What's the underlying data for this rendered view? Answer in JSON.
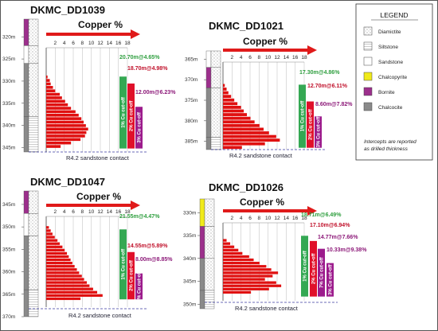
{
  "legend": {
    "title": "LEGEND",
    "items": [
      {
        "label": "Diamictite",
        "pattern": "dots"
      },
      {
        "label": "Siltstone",
        "pattern": "fine"
      },
      {
        "label": "Sandstone",
        "pattern": "plain"
      },
      {
        "label": "Chalcopyrite",
        "color": "#f0ea1a"
      },
      {
        "label": "Bornite",
        "color": "#9c2f8c"
      },
      {
        "label": "Chalcocite",
        "color": "#8a8a8a"
      }
    ],
    "note_line1": "Intercepts are reported",
    "note_line2": "as drilled thickness"
  },
  "colors": {
    "bars": "#e01010",
    "cutoff_1pct": "#34a853",
    "cutoff_2pct": "#e0102a",
    "cutoff_3pct": "#9c1b8c",
    "arrow": "#e01a1a",
    "contact": "#3a3aa0",
    "green_text": "#2e9e3e",
    "red_text": "#c0102a",
    "purple_text": "#8c1878"
  },
  "chart_data": [
    {
      "type": "bar",
      "orientation": "horizontal",
      "title": "DKMC_DD1039",
      "xlabel": "Copper %",
      "x_ticks": [
        "2",
        "4",
        "6",
        "8",
        "10",
        "12",
        "14",
        "16",
        "18"
      ],
      "xlim": [
        0,
        18
      ],
      "depth_labels": [
        "320m",
        "325m",
        "330m",
        "335m",
        "340m",
        "345m"
      ],
      "depth_range": [
        316,
        346
      ],
      "depths": [
        324,
        325,
        326,
        327,
        328,
        329,
        330,
        331,
        332,
        333,
        334,
        335,
        336,
        337,
        338,
        339,
        340,
        341,
        342,
        343,
        344
      ],
      "values": [
        0.3,
        0.8,
        1.0,
        1.5,
        2.0,
        3.0,
        3.5,
        4.2,
        4.8,
        5.5,
        6.5,
        7.2,
        7.8,
        8.3,
        8.8,
        9.3,
        8.9,
        8.6,
        7.6,
        5.5,
        3.2
      ],
      "cutoffs": [
        {
          "label": "1% Cu cut-off",
          "intercept": "20.70m@4.65%",
          "top": 324.3,
          "bottom": 345.0
        },
        {
          "label": "2% Cu cut-off",
          "intercept": "18.70m@4.98%",
          "top": 326.3,
          "bottom": 345.0
        },
        {
          "label": "3% Cu cut-off",
          "intercept": "12.00m@6.23%",
          "top": 333.0,
          "bottom": 345.0
        }
      ],
      "contact_label": "R4.2 sandstone contact",
      "contact_depth": 345.5,
      "lithology": [
        {
          "from": 316,
          "to": 322,
          "mineral": "#9c2f8c",
          "pattern": "dots"
        },
        {
          "from": 322,
          "to": 326,
          "mineral": "#ffffff",
          "pattern": "dots"
        },
        {
          "from": 326,
          "to": 338,
          "mineral": "#8a8a8a",
          "pattern": "dots"
        },
        {
          "from": 338,
          "to": 346,
          "mineral": "#8a8a8a",
          "pattern": "fine"
        }
      ]
    },
    {
      "type": "bar",
      "orientation": "horizontal",
      "title": "DKMC_DD1021",
      "xlabel": "Copper %",
      "x_ticks": [
        "2",
        "4",
        "6",
        "8",
        "10",
        "12",
        "14",
        "16",
        "18"
      ],
      "xlim": [
        0,
        18
      ],
      "depth_labels": [
        "365m",
        "370m",
        "375m",
        "380m",
        "385m"
      ],
      "depth_range": [
        363,
        387
      ],
      "depths": [
        369,
        370,
        371,
        372,
        373,
        374,
        375,
        376,
        377,
        378,
        379,
        380,
        381,
        382,
        383,
        384,
        385,
        386
      ],
      "values": [
        0.4,
        0.8,
        1.2,
        1.8,
        2.5,
        3.2,
        4.0,
        4.6,
        5.3,
        6.1,
        7.0,
        8.1,
        9.0,
        10.2,
        11.8,
        12.6,
        9.3,
        4.2
      ],
      "cutoffs": [
        {
          "label": "1% Cu cut-off",
          "intercept": "17.30m@4.86%",
          "top": 369.2,
          "bottom": 386.5
        },
        {
          "label": "2% Cu cut-off",
          "intercept": "12.70m@6.11%",
          "top": 373.8,
          "bottom": 386.5
        },
        {
          "label": "3% Cu cut-off",
          "intercept": "8.60m@7.82%",
          "top": 377.9,
          "bottom": 386.5
        }
      ],
      "contact_label": "R4.2 sandstone contact",
      "contact_depth": 387.0,
      "lithology": [
        {
          "from": 363,
          "to": 367,
          "mineral": "#ffffff",
          "pattern": "dots"
        },
        {
          "from": 367,
          "to": 372,
          "mineral": "#9c2f8c",
          "pattern": "dots"
        },
        {
          "from": 372,
          "to": 384,
          "mineral": "#8a8a8a",
          "pattern": "dots"
        },
        {
          "from": 384,
          "to": 387,
          "mineral": "#8a8a8a",
          "pattern": "fine"
        }
      ]
    },
    {
      "type": "bar",
      "orientation": "horizontal",
      "title": "DKMC_DD1047",
      "xlabel": "Copper %",
      "x_ticks": [
        "2",
        "4",
        "6",
        "8",
        "10",
        "12",
        "14",
        "16",
        "18"
      ],
      "xlim": [
        0,
        18
      ],
      "depth_labels": [
        "345m",
        "350m",
        "355m",
        "360m",
        "365m",
        "370m"
      ],
      "depth_range": [
        342,
        370
      ],
      "depths": [
        345,
        346,
        347,
        348,
        349,
        350,
        351,
        352,
        353,
        354,
        355,
        356,
        357,
        358,
        359,
        360,
        361,
        362,
        363,
        364,
        365,
        366,
        367
      ],
      "values": [
        0.6,
        1.0,
        1.4,
        1.9,
        2.5,
        3.0,
        3.6,
        4.1,
        4.6,
        5.0,
        5.4,
        5.8,
        6.3,
        6.8,
        7.3,
        7.9,
        8.4,
        9.0,
        9.6,
        10.4,
        11.3,
        12.5,
        7.6
      ],
      "cutoffs": [
        {
          "label": "1% Cu cut-off",
          "intercept": "21.55m@4.47%",
          "top": 346.0,
          "bottom": 367.6
        },
        {
          "label": "2% Cu cut-off",
          "intercept": "14.55m@5.89%",
          "top": 353.0,
          "bottom": 367.6
        },
        {
          "label": "3% Cu cut-off",
          "intercept": "8.00m@8.85%",
          "top": 359.6,
          "bottom": 367.6
        }
      ],
      "contact_label": "R4.2 sandstone contact",
      "contact_depth": 368.0,
      "lithology": [
        {
          "from": 342,
          "to": 347,
          "mineral": "#9c2f8c",
          "pattern": "dots"
        },
        {
          "from": 347,
          "to": 352,
          "mineral": "#ffffff",
          "pattern": "dots"
        },
        {
          "from": 352,
          "to": 364,
          "mineral": "#8a8a8a",
          "pattern": "dots"
        },
        {
          "from": 364,
          "to": 370,
          "mineral": "#8a8a8a",
          "pattern": "fine"
        }
      ]
    },
    {
      "type": "bar",
      "orientation": "horizontal",
      "title": "DKMC_DD1026",
      "xlabel": "Copper %",
      "x_ticks": [
        "2",
        "4",
        "6",
        "8",
        "10",
        "12",
        "14",
        "16",
        "18"
      ],
      "xlim": [
        0,
        18
      ],
      "depth_labels": [
        "330m",
        "335m",
        "340m",
        "345m",
        "350m"
      ],
      "depth_range": [
        327,
        351
      ],
      "depths": [
        332,
        333,
        334,
        335,
        336,
        337,
        338,
        339,
        340,
        341,
        342,
        343,
        344,
        345,
        346,
        347,
        348
      ],
      "values": [
        0.8,
        1.6,
        2.5,
        3.4,
        4.3,
        5.8,
        6.8,
        8.1,
        9.6,
        10.7,
        12.2,
        11.0,
        9.3,
        11.8,
        12.9,
        10.2,
        6.2
      ],
      "cutoffs": [
        {
          "label": "1% Cu cut-off",
          "intercept": "18.71m@6.49%",
          "top": 331.0,
          "bottom": 349.7
        },
        {
          "label": "2% Cu cut-off",
          "intercept": "17.10m@6.94%",
          "top": 332.6,
          "bottom": 349.7
        },
        {
          "label": "7% Cu cut-off",
          "intercept": "14.77m@7.66%",
          "top": 335.0,
          "bottom": 349.7
        },
        {
          "label": "3% Cu cut-off",
          "intercept": "10.33m@9.38%",
          "top": 339.4,
          "bottom": 349.7
        }
      ],
      "contact_label": "R4.2 sandstone contact",
      "contact_depth": 350.0,
      "lithology": [
        {
          "from": 327,
          "to": 333,
          "mineral": "#f0ea1a",
          "pattern": "dots"
        },
        {
          "from": 333,
          "to": 340,
          "mineral": "#9c2f8c",
          "pattern": "dots"
        },
        {
          "from": 340,
          "to": 347,
          "mineral": "#8a8a8a",
          "pattern": "dots"
        },
        {
          "from": 347,
          "to": 351,
          "mineral": "#8a8a8a",
          "pattern": "fine"
        }
      ]
    }
  ]
}
